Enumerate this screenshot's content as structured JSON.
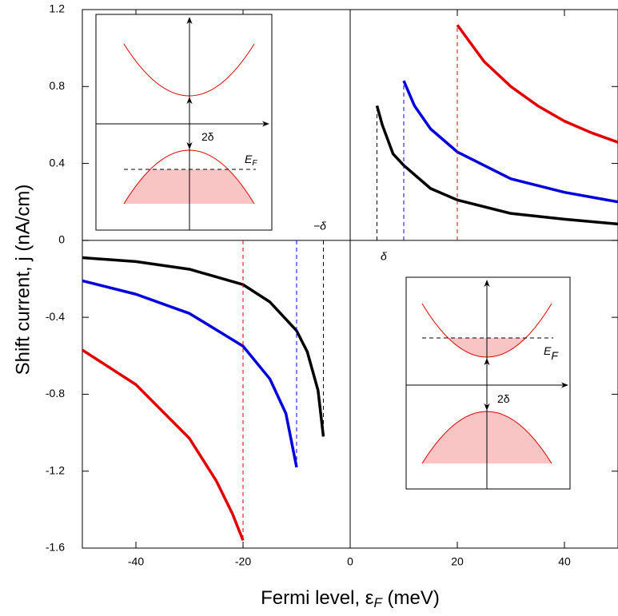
{
  "chart_data": {
    "type": "line",
    "xlabel": {
      "main": "Fermi level, ε",
      "sub": "F",
      "end": " (meV)"
    },
    "ylabel": "Shift current, j (nA/cm)",
    "xlim": [
      -50,
      50
    ],
    "ylim": [
      -1.6,
      1.2
    ],
    "xticks": [
      -40,
      -20,
      0,
      20,
      40
    ],
    "yticks": [
      -1.6,
      -1.2,
      -0.8,
      -0.4,
      0,
      0.4,
      0.8,
      1.2
    ],
    "series": [
      {
        "color": "#000000",
        "x": [
          5,
          6,
          8,
          10,
          15,
          20,
          30,
          40,
          50
        ],
        "values": [
          0.7,
          0.6,
          0.45,
          0.39,
          0.27,
          0.21,
          0.14,
          0.11,
          0.085
        ]
      },
      {
        "color": "#0000dd",
        "x": [
          10,
          12,
          15,
          20,
          30,
          40,
          50
        ],
        "values": [
          0.83,
          0.7,
          0.58,
          0.46,
          0.32,
          0.25,
          0.2
        ]
      },
      {
        "color": "#e00000",
        "x": [
          20,
          25,
          30,
          35,
          40,
          45,
          50
        ],
        "values": [
          1.12,
          0.93,
          0.8,
          0.7,
          0.62,
          0.56,
          0.51
        ]
      },
      {
        "color": "#000000",
        "x": [
          -50,
          -40,
          -30,
          -20,
          -15,
          -10,
          -8,
          -6,
          -5
        ],
        "values": [
          -0.09,
          -0.11,
          -0.15,
          -0.23,
          -0.32,
          -0.47,
          -0.58,
          -0.78,
          -1.02
        ]
      },
      {
        "color": "#0000dd",
        "x": [
          -50,
          -40,
          -30,
          -20,
          -15,
          -12,
          -10
        ],
        "values": [
          -0.21,
          -0.28,
          -0.38,
          -0.55,
          -0.72,
          -0.9,
          -1.18
        ]
      },
      {
        "color": "#e00000",
        "x": [
          -50,
          -40,
          -30,
          -25,
          -22,
          -20
        ],
        "values": [
          -0.57,
          -0.75,
          -1.03,
          -1.25,
          -1.42,
          -1.56
        ]
      }
    ],
    "annotations": {
      "delta": "δ",
      "minus_delta": "−δ"
    },
    "inset_top": {
      "gap": "2δ",
      "ef": {
        "main": "E",
        "sub": "F"
      }
    },
    "inset_bottom": {
      "gap": "2δ",
      "ef": {
        "main": "E",
        "sub": "F"
      }
    }
  }
}
